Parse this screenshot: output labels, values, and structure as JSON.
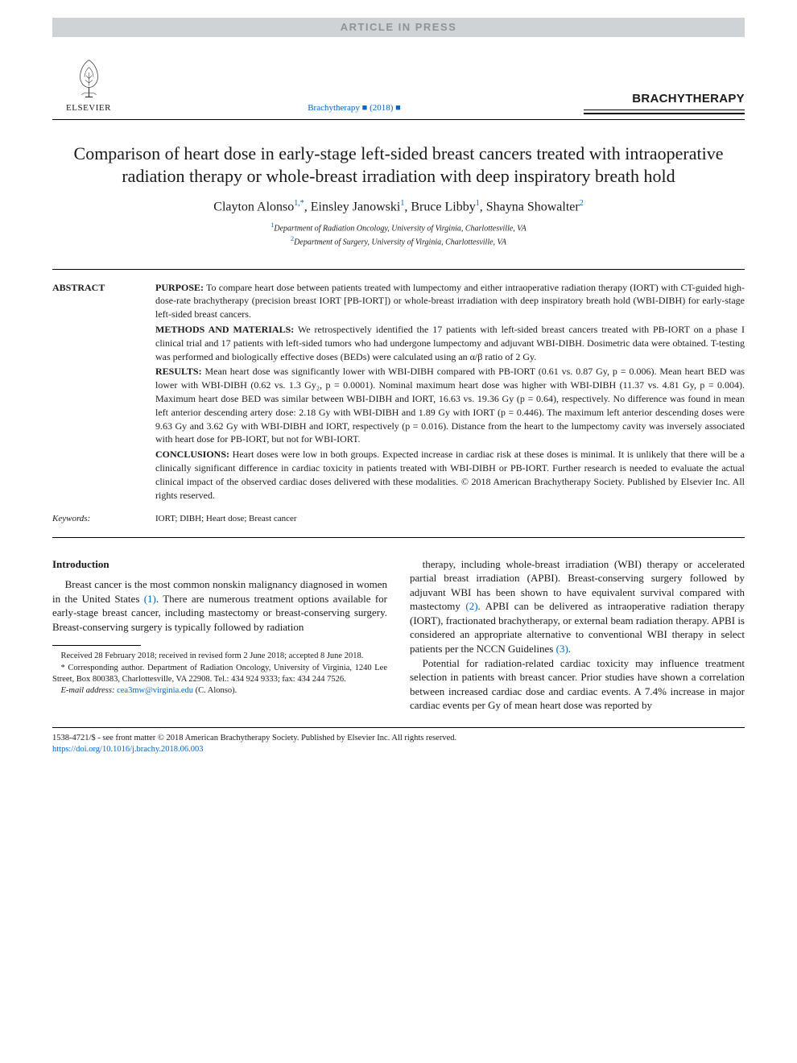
{
  "banner": "ARTICLE IN PRESS",
  "publisher": "ELSEVIER",
  "citation_line": "Brachytherapy ■ (2018) ■",
  "journal_name": "BRACHYTHERAPY",
  "title": "Comparison of heart dose in early-stage left-sided breast cancers treated with intraoperative radiation therapy or whole-breast irradiation with deep inspiratory breath hold",
  "authors_html": "Clayton Alonso<sup>1,*</sup>, Einsley Janowski<sup>1</sup>, Bruce Libby<sup>1</sup>, Shayna Showalter<sup>2</sup>",
  "affiliations": [
    {
      "num": "1",
      "text": "Department of Radiation Oncology, University of Virginia, Charlottesville, VA"
    },
    {
      "num": "2",
      "text": "Department of Surgery, University of Virginia, Charlottesville, VA"
    }
  ],
  "abstract": {
    "label": "ABSTRACT",
    "sections": [
      {
        "head": "PURPOSE:",
        "text": "To compare heart dose between patients treated with lumpectomy and either intraoperative radiation therapy (IORT) with CT-guided high-dose-rate brachytherapy (precision breast IORT [PB-IORT]) or whole-breast irradiation with deep inspiratory breath hold (WBI-DIBH) for early-stage left-sided breast cancers."
      },
      {
        "head": "METHODS AND MATERIALS:",
        "text": "We retrospectively identified the 17 patients with left-sided breast cancers treated with PB-IORT on a phase I clinical trial and 17 patients with left-sided tumors who had undergone lumpectomy and adjuvant WBI-DIBH. Dosimetric data were obtained. T-testing was performed and biologically effective doses (BEDs) were calculated using an α/β ratio of 2 Gy."
      },
      {
        "head": "RESULTS:",
        "text": "Mean heart dose was significantly lower with WBI-DIBH compared with PB-IORT (0.61 vs. 0.87 Gy, p = 0.006). Mean heart BED was lower with WBI-DIBH (0.62 vs. 1.3 Gy₂, p = 0.0001). Nominal maximum heart dose was higher with WBI-DIBH (11.37 vs. 4.81 Gy, p = 0.004). Maximum heart dose BED was similar between WBI-DIBH and IORT, 16.63 vs. 19.36 Gy (p = 0.64), respectively. No difference was found in mean left anterior descending artery dose: 2.18 Gy with WBI-DIBH and 1.89 Gy with IORT (p = 0.446). The maximum left anterior descending doses were 9.63 Gy and 3.62 Gy with WBI-DIBH and IORT, respectively (p = 0.016). Distance from the heart to the lumpectomy cavity was inversely associated with heart dose for PB-IORT, but not for WBI-IORT."
      },
      {
        "head": "CONCLUSIONS:",
        "text": "Heart doses were low in both groups. Expected increase in cardiac risk at these doses is minimal. It is unlikely that there will be a clinically significant difference in cardiac toxicity in patients treated with WBI-DIBH or PB-IORT. Further research is needed to evaluate the actual clinical impact of the observed cardiac doses delivered with these modalities. © 2018 American Brachytherapy Society. Published by Elsevier Inc. All rights reserved."
      }
    ]
  },
  "keywords": {
    "label": "Keywords:",
    "text": "IORT; DIBH; Heart dose; Breast cancer"
  },
  "intro": {
    "heading": "Introduction",
    "col1_para": "Breast cancer is the most common nonskin malignancy diagnosed in women in the United States (1). There are numerous treatment options available for early-stage breast cancer, including mastectomy or breast-conserving surgery. Breast-conserving surgery is typically followed by radiation",
    "col2_para1": "therapy, including whole-breast irradiation (WBI) therapy or accelerated partial breast irradiation (APBI). Breast-conserving surgery followed by adjuvant WBI has been shown to have equivalent survival compared with mastectomy (2). APBI can be delivered as intraoperative radiation therapy (IORT), fractionated brachytherapy, or external beam radiation therapy. APBI is considered an appropriate alternative to conventional WBI therapy in select patients per the NCCN Guidelines (3).",
    "col2_para2": "Potential for radiation-related cardiac toxicity may influence treatment selection in patients with breast cancer. Prior studies have shown a correlation between increased cardiac dose and cardiac events. A 7.4% increase in major cardiac events per Gy of mean heart dose was reported by"
  },
  "footnotes": {
    "received": "Received 28 February 2018; received in revised form 2 June 2018; accepted 8 June 2018.",
    "corresponding": "* Corresponding author. Department of Radiation Oncology, University of Virginia, 1240 Lee Street, Box 800383, Charlottesville, VA 22908. Tel.: 434 924 9333; fax: 434 244 7526.",
    "email_label": "E-mail address:",
    "email": "cea3mw@virginia.edu",
    "email_suffix": "(C. Alonso)."
  },
  "footer": {
    "copyright": "1538-4721/$ - see front matter © 2018 American Brachytherapy Society. Published by Elsevier Inc. All rights reserved.",
    "doi": "https://doi.org/10.1016/j.brachy.2018.06.003"
  },
  "colors": {
    "banner_bg": "#d0d3d6",
    "banner_text": "#8e9398",
    "link": "#0066cc",
    "text": "#1a1a1a",
    "rule": "#000000"
  },
  "fontsizes": {
    "title": 22,
    "authors": 16,
    "body": 13,
    "abstract": 12,
    "affil": 10,
    "footnote": 10.5
  }
}
